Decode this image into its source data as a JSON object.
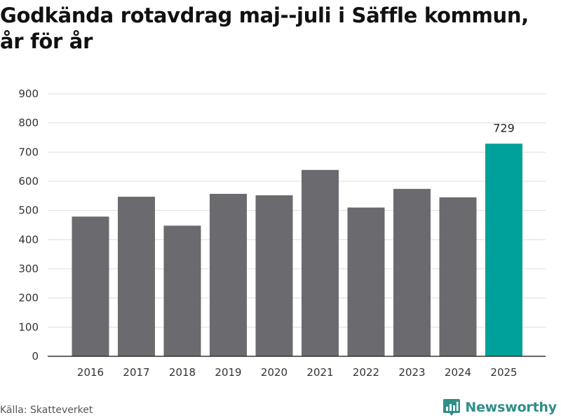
{
  "header": {
    "title_line1": "Godkända rotavdrag maj--juli i Säffle kommun,",
    "title_line2": "år för år"
  },
  "footer": {
    "source": "Källa: Skatteverket",
    "brand": "Newsworthy"
  },
  "colors": {
    "bar": "#6b6a6f",
    "highlight": "#00a19a",
    "grid": "#dddddd",
    "axis": "#333333",
    "brand": "#2f8e89"
  },
  "chart_data": {
    "type": "bar",
    "categories": [
      "2016",
      "2017",
      "2018",
      "2019",
      "2020",
      "2021",
      "2022",
      "2023",
      "2024",
      "2025"
    ],
    "values": [
      479,
      547,
      448,
      557,
      552,
      639,
      510,
      574,
      545,
      729
    ],
    "highlight_category": "2025",
    "data_labels": [
      {
        "category": "2025",
        "text": "729"
      }
    ],
    "title": "Godkända rotavdrag maj--juli i Säffle kommun, år för år",
    "xlabel": "",
    "ylabel": "",
    "ylim": [
      0,
      900
    ],
    "yticks": [
      0,
      100,
      200,
      300,
      400,
      500,
      600,
      700,
      800,
      900
    ],
    "grid": true,
    "legend": "none"
  }
}
